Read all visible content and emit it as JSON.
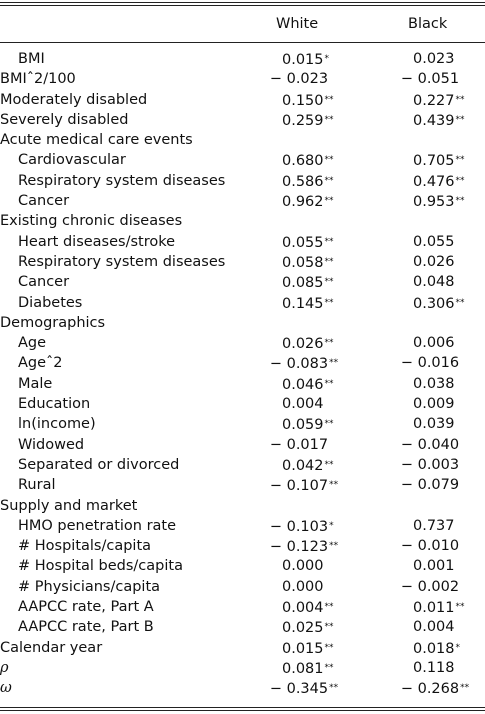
{
  "header": {
    "white": "White",
    "black": "Black"
  },
  "rows": [
    {
      "label": "BMI",
      "indent": true,
      "white": "0.015",
      "white_sig": "*",
      "black": "0.023",
      "black_sig": ""
    },
    {
      "label": "BMIˆ2/100",
      "indent": false,
      "white": "− 0.023",
      "white_sig": "",
      "black": "− 0.051",
      "black_sig": ""
    },
    {
      "label": "Moderately disabled",
      "indent": false,
      "white": "0.150",
      "white_sig": "**",
      "black": "0.227",
      "black_sig": "**"
    },
    {
      "label": "Severely disabled",
      "indent": false,
      "white": "0.259",
      "white_sig": "**",
      "black": "0.439",
      "black_sig": "**"
    },
    {
      "label": "Acute medical care events",
      "indent": false,
      "white": "",
      "white_sig": "",
      "black": "",
      "black_sig": ""
    },
    {
      "label": "Cardiovascular",
      "indent": true,
      "white": "0.680",
      "white_sig": "**",
      "black": "0.705",
      "black_sig": "**"
    },
    {
      "label": "Respiratory system diseases",
      "indent": true,
      "white": "0.586",
      "white_sig": "**",
      "black": "0.476",
      "black_sig": "**"
    },
    {
      "label": "Cancer",
      "indent": true,
      "white": "0.962",
      "white_sig": "**",
      "black": "0.953",
      "black_sig": "**"
    },
    {
      "label": "Existing chronic diseases",
      "indent": false,
      "white": "",
      "white_sig": "",
      "black": "",
      "black_sig": ""
    },
    {
      "label": "Heart diseases/stroke",
      "indent": true,
      "white": "0.055",
      "white_sig": "**",
      "black": "0.055",
      "black_sig": ""
    },
    {
      "label": "Respiratory system diseases",
      "indent": true,
      "white": "0.058",
      "white_sig": "**",
      "black": "0.026",
      "black_sig": ""
    },
    {
      "label": "Cancer",
      "indent": true,
      "white": "0.085",
      "white_sig": "**",
      "black": "0.048",
      "black_sig": ""
    },
    {
      "label": "Diabetes",
      "indent": true,
      "white": "0.145",
      "white_sig": "**",
      "black": "0.306",
      "black_sig": "**"
    },
    {
      "label": "Demographics",
      "indent": false,
      "white": "",
      "white_sig": "",
      "black": "",
      "black_sig": ""
    },
    {
      "label": "Age",
      "indent": true,
      "white": "0.026",
      "white_sig": "**",
      "black": "0.006",
      "black_sig": ""
    },
    {
      "label": "Ageˆ2",
      "indent": true,
      "white": "− 0.083",
      "white_sig": "**",
      "black": "− 0.016",
      "black_sig": ""
    },
    {
      "label": "Male",
      "indent": true,
      "white": "0.046",
      "white_sig": "**",
      "black": "0.038",
      "black_sig": ""
    },
    {
      "label": "Education",
      "indent": true,
      "white": "0.004",
      "white_sig": "",
      "black": "0.009",
      "black_sig": ""
    },
    {
      "label": "ln(income)",
      "indent": true,
      "white": "0.059",
      "white_sig": "**",
      "black": "0.039",
      "black_sig": ""
    },
    {
      "label": "Widowed",
      "indent": true,
      "white": "− 0.017",
      "white_sig": "",
      "black": "− 0.040",
      "black_sig": ""
    },
    {
      "label": "Separated or divorced",
      "indent": true,
      "white": "0.042",
      "white_sig": "**",
      "black": "− 0.003",
      "black_sig": ""
    },
    {
      "label": "Rural",
      "indent": true,
      "white": "− 0.107",
      "white_sig": "**",
      "black": "− 0.079",
      "black_sig": ""
    },
    {
      "label": "Supply and market",
      "indent": false,
      "white": "",
      "white_sig": "",
      "black": "",
      "black_sig": ""
    },
    {
      "label": "HMO penetration rate",
      "indent": true,
      "white": "− 0.103",
      "white_sig": "*",
      "black": "0.737",
      "black_sig": ""
    },
    {
      "label": "# Hospitals/capita",
      "indent": true,
      "white": "− 0.123",
      "white_sig": "**",
      "black": "− 0.010",
      "black_sig": ""
    },
    {
      "label": "# Hospital beds/capita",
      "indent": true,
      "white": "0.000",
      "white_sig": "",
      "black": "0.001",
      "black_sig": ""
    },
    {
      "label": "# Physicians/capita",
      "indent": true,
      "white": "0.000",
      "white_sig": "",
      "black": "− 0.002",
      "black_sig": ""
    },
    {
      "label": "AAPCC rate, Part A",
      "indent": true,
      "white": "0.004",
      "white_sig": "**",
      "black": "0.011",
      "black_sig": "**"
    },
    {
      "label": "AAPCC rate, Part B",
      "indent": true,
      "white": "0.025",
      "white_sig": "**",
      "black": "0.004",
      "black_sig": ""
    },
    {
      "label": "Calendar year",
      "indent": false,
      "white": "0.015",
      "white_sig": "**",
      "black": "0.018",
      "black_sig": "*"
    },
    {
      "label": "ρ",
      "indent": false,
      "greek": true,
      "white": "0.081",
      "white_sig": "**",
      "black": "0.118",
      "black_sig": ""
    },
    {
      "label": "ω",
      "indent": false,
      "greek": true,
      "white": "− 0.345",
      "white_sig": "**",
      "black": "− 0.268",
      "black_sig": "**"
    }
  ]
}
